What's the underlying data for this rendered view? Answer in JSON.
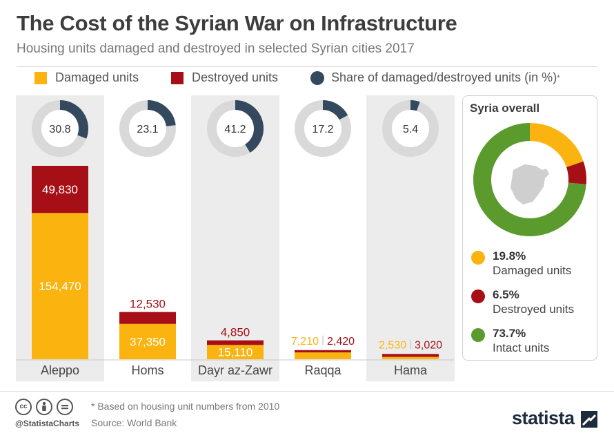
{
  "header": {
    "title": "The Cost of the Syrian War on Infrastructure",
    "subtitle": "Housing units damaged and destroyed in selected Syrian cities 2017"
  },
  "legend": {
    "damaged": "Damaged units",
    "destroyed": "Destroyed units",
    "share": "Share of damaged/destroyed units (in %)",
    "share_mark": "*"
  },
  "colors": {
    "damaged": "#fbb40f",
    "destroyed": "#a50f15",
    "share": "#34495e",
    "share_track": "#d9d9d9",
    "intact": "#5b9a2c",
    "panel": "#ececec"
  },
  "chart_data": [
    {
      "type": "bar",
      "stacked": true,
      "categories": [
        "Aleppo",
        "Homs",
        "Dayr az-Zawr",
        "Raqqa",
        "Hama"
      ],
      "series": [
        {
          "name": "Damaged units",
          "values": [
            154470,
            37350,
            15110,
            7210,
            2530
          ],
          "labels": [
            "154,470",
            "37,350",
            "15,110",
            "7,210",
            "2,530"
          ]
        },
        {
          "name": "Destroyed units",
          "values": [
            49830,
            12530,
            4850,
            2420,
            3020
          ],
          "labels": [
            "49,830",
            "12,530",
            "4,850",
            "2,420",
            "3,020"
          ]
        }
      ]
    },
    {
      "type": "pie",
      "variant": "donut",
      "series_name": "Share of damaged/destroyed units (in %)",
      "categories": [
        "Aleppo",
        "Homs",
        "Dayr az-Zawr",
        "Raqqa",
        "Hama"
      ],
      "values": [
        30.8,
        23.1,
        41.2,
        17.2,
        5.4
      ],
      "labels": [
        "30.8",
        "23.1",
        "41.2",
        "17.2",
        "5.4"
      ]
    },
    {
      "type": "pie",
      "variant": "donut",
      "title": "Syria overall",
      "categories": [
        "Damaged units",
        "Destroyed units",
        "Intact units"
      ],
      "values": [
        19.8,
        6.5,
        73.7
      ],
      "labels": [
        "19.8%",
        "6.5%",
        "73.7%"
      ]
    }
  ],
  "overall": {
    "title": "Syria overall",
    "items": [
      {
        "pct": "19.8%",
        "label": "Damaged units"
      },
      {
        "pct": "6.5%",
        "label": "Destroyed units"
      },
      {
        "pct": "73.7%",
        "label": "Intact units"
      }
    ]
  },
  "footer": {
    "cc_icons": [
      "cc",
      "by",
      "nd"
    ],
    "handle": "@StatistaCharts",
    "footnote": "* Based on housing unit numbers from 2010",
    "source": "Source: World Bank",
    "brand": "statista"
  }
}
